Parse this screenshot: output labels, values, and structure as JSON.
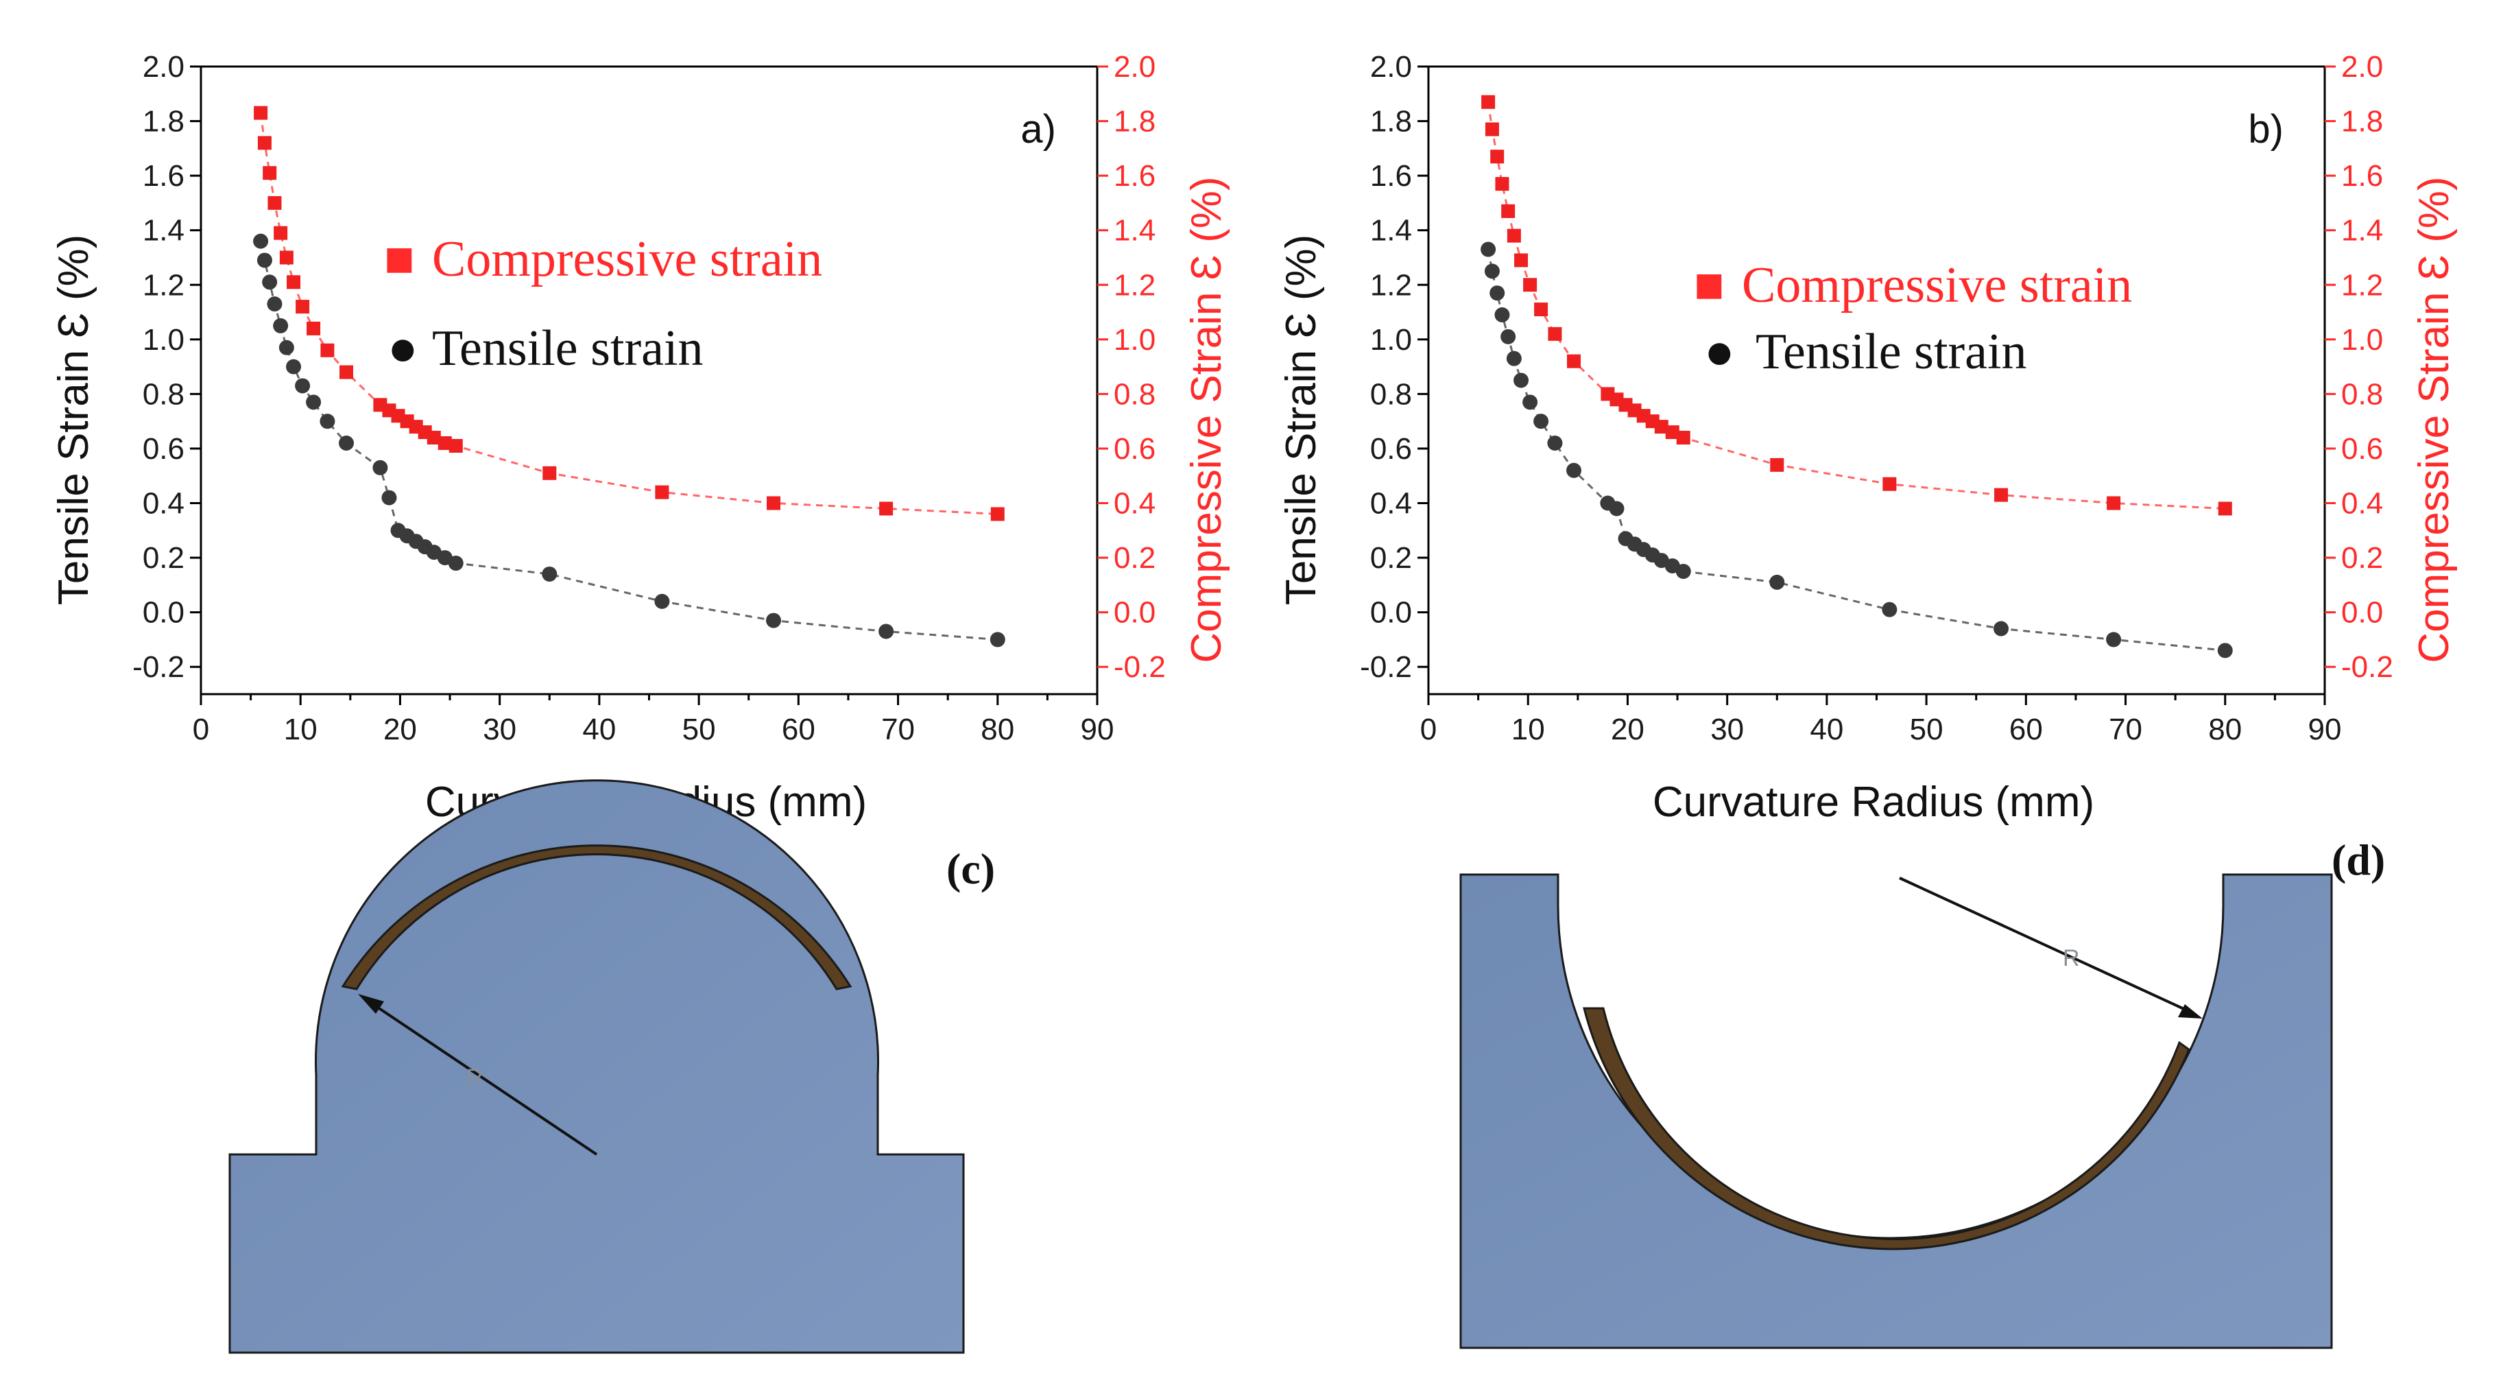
{
  "chart_data": [
    {
      "type": "scatter",
      "panel_label": "a)",
      "xlabel": "Curvature Radius (mm)",
      "ylabel_left": "Tensile Strain Ɛ (%)",
      "ylabel_right": "Compressive Strain Ɛ (%)",
      "xlim": [
        0,
        90
      ],
      "ylim": [
        -0.3,
        2.0
      ],
      "x_ticks": [
        "0",
        "10",
        "20",
        "30",
        "40",
        "50",
        "60",
        "70",
        "80",
        "90"
      ],
      "y_ticks": [
        "-0.2",
        "0.0",
        "0.2",
        "0.4",
        "0.6",
        "0.8",
        "1.0",
        "1.2",
        "1.4",
        "1.6",
        "1.8",
        "2.0"
      ],
      "y_tick_values": [
        -0.2,
        0.0,
        0.2,
        0.4,
        0.6,
        0.8,
        1.0,
        1.2,
        1.4,
        1.6,
        1.8,
        2.0
      ],
      "legend": [
        {
          "marker": "■",
          "label": "Compressive strain",
          "color": "#ff2a2a"
        },
        {
          "marker": "●",
          "label": "Tensile strain",
          "color": "#111111"
        }
      ],
      "series": [
        {
          "name": "Compressive strain",
          "marker": "square",
          "color": "#ee2020",
          "x": [
            6,
            6.4,
            6.9,
            7.4,
            8,
            8.6,
            9.3,
            10.2,
            11.3,
            12.7,
            14.6,
            18,
            18.9,
            19.8,
            20.7,
            21.6,
            22.5,
            23.4,
            24.5,
            25.6,
            35,
            46.3,
            57.5,
            68.8,
            80
          ],
          "values": [
            1.83,
            1.72,
            1.61,
            1.5,
            1.39,
            1.3,
            1.21,
            1.12,
            1.04,
            0.96,
            0.88,
            0.76,
            0.74,
            0.72,
            0.7,
            0.68,
            0.66,
            0.64,
            0.62,
            0.61,
            0.51,
            0.44,
            0.4,
            0.38,
            0.36
          ]
        },
        {
          "name": "Tensile strain",
          "marker": "circle",
          "color": "#3a3a3a",
          "x": [
            6,
            6.4,
            6.9,
            7.4,
            8,
            8.6,
            9.3,
            10.2,
            11.3,
            12.7,
            14.6,
            18,
            18.9,
            19.8,
            20.7,
            21.6,
            22.5,
            23.4,
            24.5,
            25.6,
            35,
            46.3,
            57.5,
            68.8,
            80
          ],
          "values": [
            1.36,
            1.29,
            1.21,
            1.13,
            1.05,
            0.97,
            0.9,
            0.83,
            0.77,
            0.7,
            0.62,
            0.53,
            0.42,
            0.3,
            0.28,
            0.26,
            0.24,
            0.22,
            0.2,
            0.18,
            0.14,
            0.04,
            -0.03,
            -0.07,
            -0.1
          ]
        }
      ]
    },
    {
      "type": "scatter",
      "panel_label": "b)",
      "xlabel": "Curvature Radius (mm)",
      "ylabel_left": "Tensile Strain Ɛ (%)",
      "ylabel_right": "Compressive Strain Ɛ (%)",
      "xlim": [
        0,
        90
      ],
      "ylim": [
        -0.3,
        2.0
      ],
      "x_ticks": [
        "0",
        "10",
        "20",
        "30",
        "40",
        "50",
        "60",
        "70",
        "80",
        "90"
      ],
      "y_ticks": [
        "-0.2",
        "0.0",
        "0.2",
        "0.4",
        "0.6",
        "0.8",
        "1.0",
        "1.2",
        "1.4",
        "1.6",
        "1.8",
        "2.0"
      ],
      "y_tick_values": [
        -0.2,
        0.0,
        0.2,
        0.4,
        0.6,
        0.8,
        1.0,
        1.2,
        1.4,
        1.6,
        1.8,
        2.0
      ],
      "legend": [
        {
          "marker": "■",
          "label": "Compressive strain",
          "color": "#ff2a2a"
        },
        {
          "marker": "●",
          "label": "Tensile strain",
          "color": "#111111"
        }
      ],
      "series": [
        {
          "name": "Compressive strain",
          "marker": "square",
          "color": "#ee2020",
          "x": [
            6,
            6.4,
            6.9,
            7.4,
            8,
            8.6,
            9.3,
            10.2,
            11.3,
            12.7,
            14.6,
            18,
            18.9,
            19.8,
            20.7,
            21.6,
            22.5,
            23.4,
            24.5,
            25.6,
            35,
            46.3,
            57.5,
            68.8,
            80
          ],
          "values": [
            1.87,
            1.77,
            1.67,
            1.57,
            1.47,
            1.38,
            1.29,
            1.2,
            1.11,
            1.02,
            0.92,
            0.8,
            0.78,
            0.76,
            0.74,
            0.72,
            0.7,
            0.68,
            0.66,
            0.64,
            0.54,
            0.47,
            0.43,
            0.4,
            0.38
          ]
        },
        {
          "name": "Tensile strain",
          "marker": "circle",
          "color": "#3a3a3a",
          "x": [
            6,
            6.4,
            6.9,
            7.4,
            8,
            8.6,
            9.3,
            10.2,
            11.3,
            12.7,
            14.6,
            18,
            18.9,
            19.8,
            20.7,
            21.6,
            22.5,
            23.4,
            24.5,
            25.6,
            35,
            46.3,
            57.5,
            68.8,
            80
          ],
          "values": [
            1.33,
            1.25,
            1.17,
            1.09,
            1.01,
            0.93,
            0.85,
            0.77,
            0.7,
            0.62,
            0.52,
            0.4,
            0.38,
            0.27,
            0.25,
            0.23,
            0.21,
            0.19,
            0.17,
            0.15,
            0.11,
            0.01,
            -0.06,
            -0.1,
            -0.14
          ]
        }
      ]
    }
  ],
  "diagrams": {
    "c": {
      "label": "(c)",
      "radius_label": "R"
    },
    "d": {
      "label": "(d)",
      "radius_label": "R"
    }
  },
  "colors": {
    "substrate": "#7891b8",
    "substrate_dark": "#5f7aa3",
    "film": "#5a4020",
    "compressive": "#ff2a2a",
    "tensile": "#111111"
  }
}
